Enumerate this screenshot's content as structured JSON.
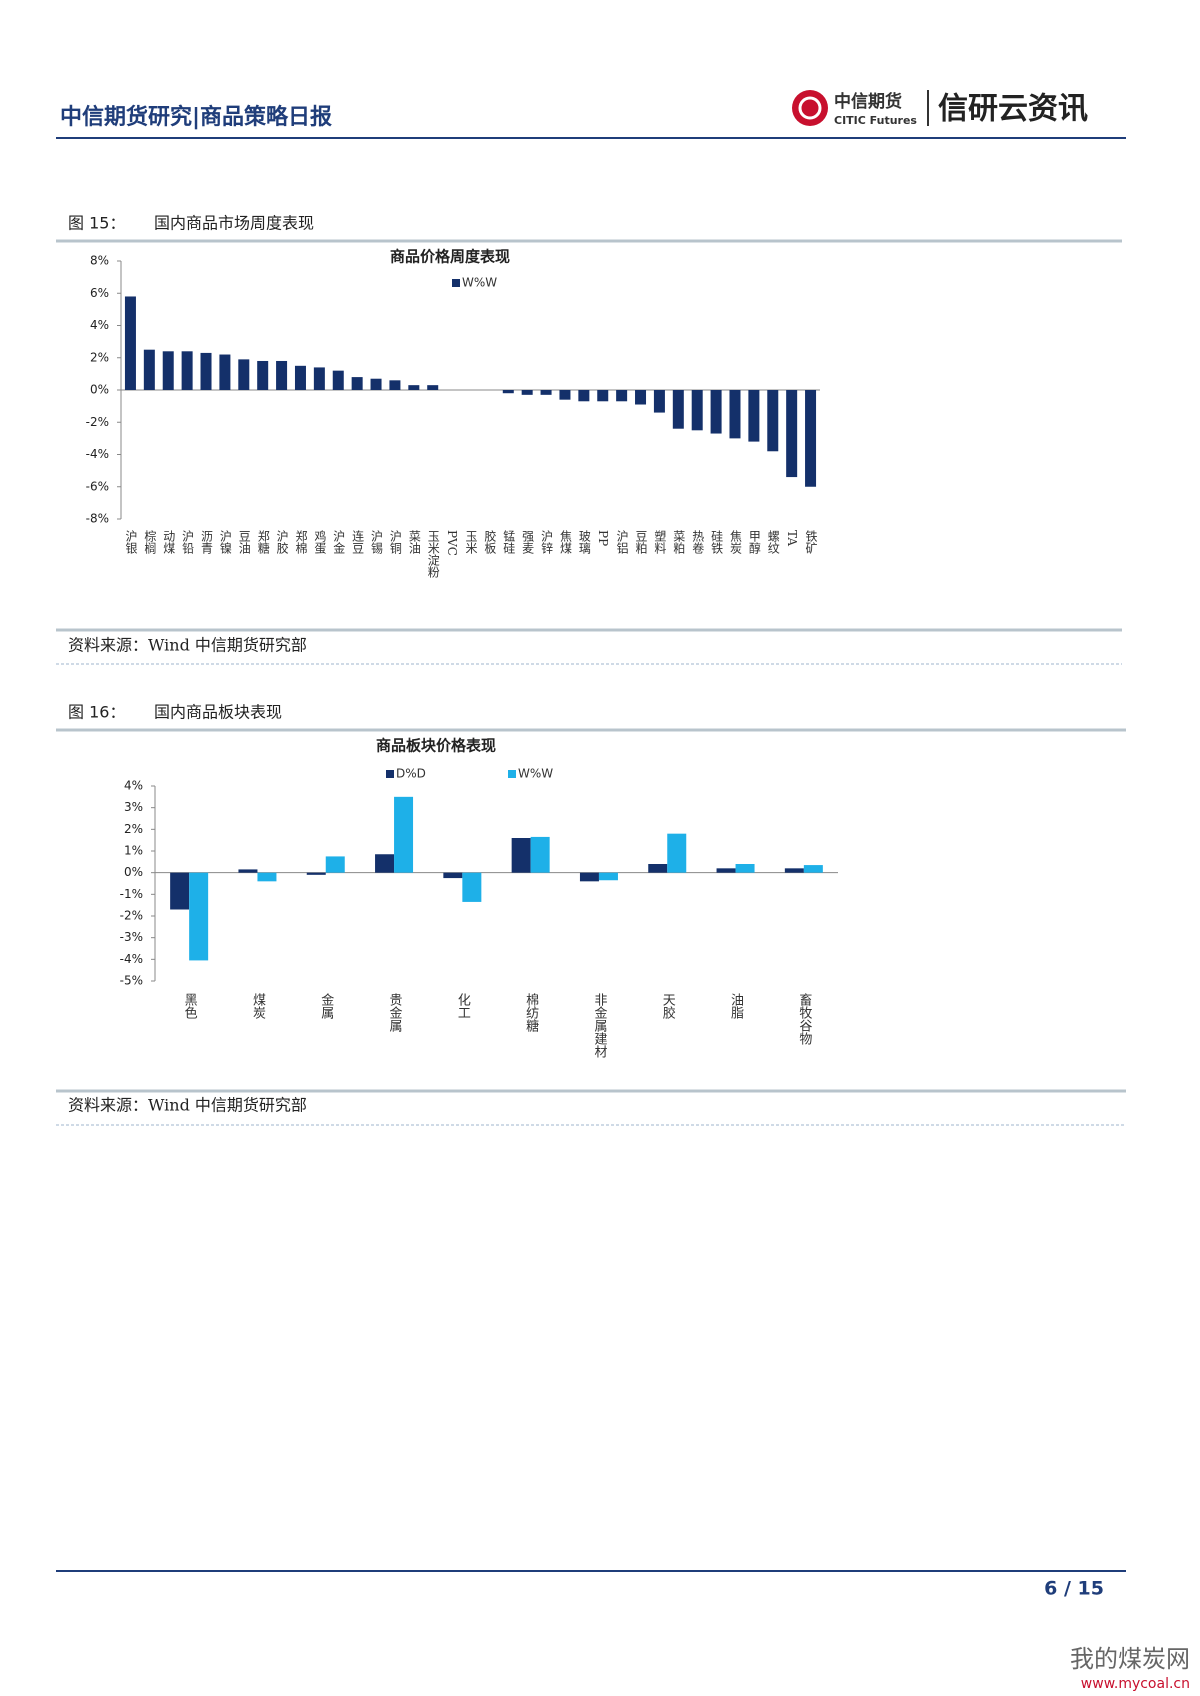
{
  "header": {
    "title": "中信期货研究|商品策略日报",
    "logo_cn": "中信期货",
    "logo_en": "CITIC Futures",
    "brand": "信研云资讯"
  },
  "figures": [
    {
      "label": "图 15：",
      "caption": "国内商品市场周度表现",
      "source": "资料来源：Wind  中信期货研究部"
    },
    {
      "label": "图 16：",
      "caption": "国内商品板块表现",
      "source": "资料来源：Wind  中信期货研究部"
    }
  ],
  "chart_data": [
    {
      "type": "bar",
      "title": "商品价格周度表现",
      "categories": [
        "沪银",
        "棕榈",
        "动煤",
        "沪铅",
        "沥青",
        "沪镍",
        "豆油",
        "郑糖",
        "沪胶",
        "郑棉",
        "鸡蛋",
        "沪金",
        "连豆",
        "沪锡",
        "沪铜",
        "菜油",
        "玉米淀粉",
        "PVC",
        "玉米",
        "胶板",
        "锰硅",
        "强麦",
        "沪锌",
        "焦煤",
        "玻璃",
        "PP",
        "沪铝",
        "豆粕",
        "塑料",
        "菜粕",
        "热卷",
        "硅铁",
        "焦炭",
        "甲醇",
        "螺纹",
        "TA",
        "铁矿"
      ],
      "series": [
        {
          "name": "W%W",
          "color": "#14306a",
          "values": [
            5.8,
            2.5,
            2.4,
            2.4,
            2.3,
            2.2,
            1.9,
            1.8,
            1.8,
            1.5,
            1.4,
            1.2,
            0.8,
            0.7,
            0.6,
            0.3,
            0.3,
            0,
            0,
            0,
            -0.2,
            -0.3,
            -0.3,
            -0.6,
            -0.7,
            -0.7,
            -0.7,
            -0.9,
            -1.4,
            -2.4,
            -2.5,
            -2.7,
            -3.0,
            -3.2,
            -3.8,
            -5.4,
            -6.0
          ]
        }
      ],
      "ylim": [
        -8,
        8
      ],
      "yticks": [
        {
          "value": 8,
          "label": "8%"
        },
        {
          "value": 6,
          "label": "6%"
        },
        {
          "value": 4,
          "label": "4%"
        },
        {
          "value": 2,
          "label": "2%"
        },
        {
          "value": 0,
          "label": "0%"
        },
        {
          "value": -2,
          "label": "-2%"
        },
        {
          "value": -4,
          "label": "-4%"
        },
        {
          "value": -6,
          "label": "-6%"
        },
        {
          "value": -8,
          "label": "-8%"
        }
      ],
      "grid": false
    },
    {
      "type": "bar",
      "title": "商品板块价格表现",
      "categories": [
        "黑色",
        "煤炭",
        "金属",
        "贵金属",
        "化工",
        "棉纺糖",
        "非金属建材",
        "天胶",
        "油脂",
        "畜牧谷物"
      ],
      "series": [
        {
          "name": "D%D",
          "color": "#14306a",
          "values": [
            -1.7,
            0.15,
            -0.1,
            0.85,
            -0.25,
            1.6,
            -0.4,
            0.4,
            0.2,
            0.2
          ]
        },
        {
          "name": "W%W",
          "color": "#1eb0e8",
          "values": [
            -4.05,
            -0.4,
            0.75,
            3.5,
            -1.35,
            1.65,
            -0.35,
            1.8,
            0.4,
            0.35
          ]
        }
      ],
      "ylim": [
        -5,
        4
      ],
      "yticks": [
        {
          "value": 4,
          "label": "4%"
        },
        {
          "value": 3,
          "label": "3%"
        },
        {
          "value": 2,
          "label": "2%"
        },
        {
          "value": 1,
          "label": "1%"
        },
        {
          "value": 0,
          "label": "0%"
        },
        {
          "value": -1,
          "label": "-1%"
        },
        {
          "value": -2,
          "label": "-2%"
        },
        {
          "value": -3,
          "label": "-3%"
        },
        {
          "value": -4,
          "label": "-4%"
        },
        {
          "value": -5,
          "label": "-5%"
        }
      ],
      "grid": false
    }
  ],
  "footer": {
    "page": "6 / 15"
  },
  "watermark": {
    "name": "我的煤炭网",
    "url": "www.mycoal.cn"
  }
}
